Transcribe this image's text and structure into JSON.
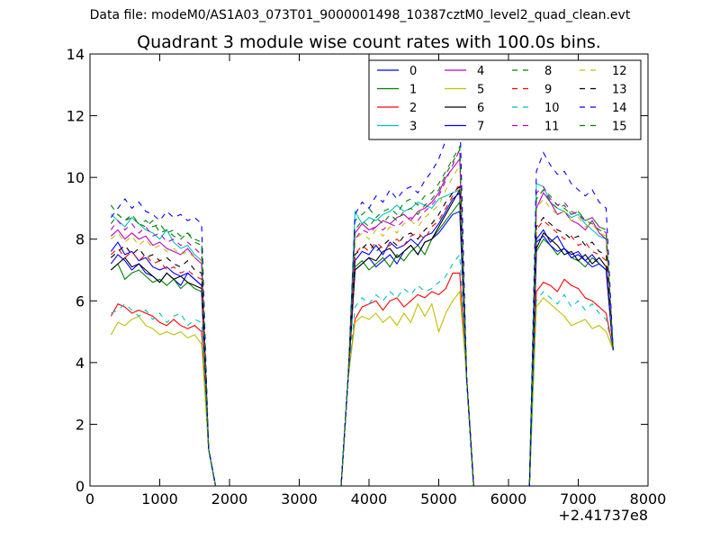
{
  "suptitle": "Data file: modeM0/AS1A03_073T01_9000001498_10387cztM0_level2_quad_clean.evt",
  "chart_data": {
    "type": "line",
    "title": "Quadrant 3 module wise count rates with 100.0s bins.",
    "xlabel": "",
    "ylabel": "",
    "x_offset_label": "+2.41737e8",
    "xlim": [
      0,
      8000
    ],
    "ylim": [
      0,
      14
    ],
    "xticks": [
      0,
      1000,
      2000,
      3000,
      4000,
      5000,
      6000,
      7000,
      8000
    ],
    "yticks": [
      0,
      2,
      4,
      6,
      8,
      10,
      12,
      14
    ],
    "grid": false,
    "legend": {
      "placement": "top-right",
      "ncol": 4
    },
    "x_segments": [
      {
        "start": 300,
        "end": 1600
      },
      {
        "start": 3800,
        "end": 5300
      },
      {
        "start": 6400,
        "end": 7400
      }
    ],
    "series": [
      {
        "name": "0",
        "color": "#0000ff",
        "dash": "solid",
        "seg_values": [
          [
            7.2,
            7.5,
            7.3,
            7.0,
            7.2,
            6.9,
            6.8,
            6.6,
            6.9,
            6.7,
            6.5,
            6.9,
            6.7,
            6.5
          ],
          [
            7.0,
            7.2,
            7.4,
            7.1,
            7.3,
            7.5,
            7.2,
            7.6,
            7.8,
            7.5,
            7.9,
            8.0,
            8.2,
            8.5,
            8.8,
            8.9
          ],
          [
            8.0,
            8.3,
            7.9,
            8.1,
            7.7,
            7.5,
            7.6,
            7.3,
            7.5,
            7.2,
            7.0
          ]
        ]
      },
      {
        "name": "1",
        "color": "#008000",
        "dash": "solid",
        "seg_values": [
          [
            7.0,
            7.2,
            6.7,
            6.9,
            7.0,
            6.8,
            6.6,
            6.7,
            6.5,
            6.7,
            6.4,
            6.6,
            6.4,
            6.3
          ],
          [
            7.1,
            7.3,
            7.0,
            7.2,
            7.4,
            7.1,
            7.5,
            7.3,
            7.6,
            7.8,
            7.5,
            8.0,
            8.3,
            8.6,
            8.9,
            9.2
          ],
          [
            7.6,
            8.0,
            7.8,
            7.5,
            7.7,
            7.4,
            7.3,
            7.1,
            7.4,
            7.2,
            7.0
          ]
        ]
      },
      {
        "name": "2",
        "color": "#ff0000",
        "dash": "solid",
        "seg_values": [
          [
            5.5,
            5.9,
            5.8,
            5.6,
            5.7,
            5.6,
            5.5,
            5.3,
            5.2,
            5.4,
            5.2,
            5.1,
            5.2,
            5.0
          ],
          [
            5.4,
            5.8,
            5.9,
            6.0,
            5.7,
            6.0,
            6.1,
            5.8,
            6.0,
            6.2,
            6.1,
            6.3,
            6.2,
            6.4,
            6.9,
            6.9
          ],
          [
            6.3,
            6.6,
            6.5,
            6.3,
            6.7,
            6.5,
            6.4,
            6.1,
            6.0,
            5.8,
            5.6
          ]
        ]
      },
      {
        "name": "3",
        "color": "#00bfbf",
        "dash": "solid",
        "seg_values": [
          [
            8.8,
            8.6,
            8.4,
            8.7,
            8.5,
            8.3,
            8.2,
            8.0,
            8.3,
            7.9,
            7.7,
            7.8,
            7.5,
            7.3
          ],
          [
            8.9,
            8.5,
            8.7,
            8.6,
            8.8,
            8.9,
            9.1,
            8.9,
            9.0,
            9.2,
            9.1,
            9.0,
            9.3,
            9.4,
            9.5,
            9.6
          ],
          [
            9.8,
            9.7,
            9.2,
            9.0,
            8.9,
            8.7,
            8.8,
            8.5,
            8.3,
            8.1,
            8.0
          ]
        ]
      },
      {
        "name": "4",
        "color": "#bf00bf",
        "dash": "solid",
        "seg_values": [
          [
            8.1,
            8.3,
            8.0,
            8.2,
            8.0,
            8.1,
            7.8,
            7.9,
            7.7,
            7.6,
            7.5,
            7.7,
            7.4,
            7.2
          ],
          [
            8.2,
            8.5,
            8.3,
            8.4,
            8.6,
            8.5,
            8.7,
            8.8,
            8.6,
            8.9,
            9.0,
            9.2,
            9.5,
            10.0,
            10.3,
            10.6
          ],
          [
            9.0,
            9.5,
            9.2,
            8.8,
            8.9,
            8.6,
            8.5,
            8.3,
            8.6,
            8.2,
            8.0
          ]
        ]
      },
      {
        "name": "5",
        "color": "#bfbf00",
        "dash": "solid",
        "seg_values": [
          [
            4.9,
            5.3,
            5.2,
            5.4,
            5.5,
            5.2,
            5.1,
            4.9,
            5.0,
            4.9,
            5.0,
            4.8,
            4.9,
            4.6
          ],
          [
            5.3,
            5.5,
            5.4,
            5.6,
            5.3,
            5.5,
            5.2,
            5.6,
            5.3,
            5.9,
            5.5,
            5.9,
            5.0,
            5.6,
            6.0,
            6.3
          ],
          [
            5.8,
            6.1,
            5.9,
            5.7,
            5.5,
            5.2,
            5.3,
            5.4,
            5.1,
            5.2,
            5.0
          ]
        ]
      },
      {
        "name": "6",
        "color": "#000000",
        "dash": "solid",
        "seg_values": [
          [
            7.0,
            7.2,
            7.4,
            7.1,
            7.2,
            7.0,
            6.8,
            6.6,
            6.9,
            6.7,
            6.8,
            6.6,
            6.5,
            6.4
          ],
          [
            7.0,
            7.2,
            7.4,
            7.3,
            7.6,
            7.7,
            7.4,
            7.6,
            7.8,
            7.5,
            7.9,
            8.0,
            8.4,
            8.8,
            9.2,
            9.6
          ],
          [
            7.7,
            8.2,
            8.0,
            7.8,
            7.5,
            7.6,
            7.3,
            7.5,
            7.2,
            7.4,
            7.1
          ]
        ]
      },
      {
        "name": "7",
        "color": "#0000ff",
        "dash": "solid",
        "seg_values": [
          [
            7.6,
            7.9,
            7.5,
            7.6,
            7.3,
            7.4,
            7.1,
            7.0,
            7.1,
            6.9,
            6.8,
            6.9,
            6.7,
            6.5
          ],
          [
            7.3,
            7.6,
            7.5,
            7.8,
            7.5,
            7.9,
            7.7,
            7.8,
            8.0,
            7.8,
            8.1,
            8.2,
            8.5,
            8.9,
            9.3,
            9.5
          ],
          [
            7.9,
            8.1,
            7.8,
            7.6,
            7.7,
            7.4,
            7.5,
            7.3,
            7.1,
            7.2,
            7.0
          ]
        ]
      },
      {
        "name": "8",
        "color": "#008000",
        "dash": "dashed",
        "seg_values": [
          [
            9.1,
            8.8,
            8.6,
            8.8,
            8.5,
            8.4,
            8.6,
            8.2,
            8.3,
            8.1,
            8.0,
            8.2,
            7.9,
            7.8
          ],
          [
            8.6,
            8.8,
            9.0,
            8.7,
            8.9,
            9.0,
            8.8,
            9.2,
            9.3,
            9.1,
            9.4,
            9.5,
            9.8,
            10.2,
            10.6,
            11.0
          ],
          [
            9.3,
            9.6,
            9.4,
            9.1,
            9.0,
            8.8,
            8.9,
            8.6,
            8.5,
            8.3,
            8.2
          ]
        ]
      },
      {
        "name": "9",
        "color": "#ff0000",
        "dash": "dashed",
        "seg_values": [
          [
            7.5,
            7.7,
            7.4,
            7.6,
            7.3,
            7.5,
            7.2,
            7.3,
            7.0,
            7.1,
            6.9,
            7.0,
            6.8,
            6.7
          ],
          [
            7.5,
            7.8,
            7.6,
            7.9,
            7.7,
            7.8,
            8.0,
            7.8,
            8.1,
            8.2,
            8.0,
            8.4,
            8.6,
            9.0,
            9.4,
            9.8
          ],
          [
            8.3,
            8.6,
            8.4,
            8.2,
            8.0,
            8.1,
            7.8,
            7.9,
            7.6,
            7.5,
            7.3
          ]
        ]
      },
      {
        "name": "10",
        "color": "#00bfbf",
        "dash": "dashed",
        "seg_values": [
          [
            5.6,
            5.7,
            5.9,
            5.7,
            5.5,
            5.7,
            5.4,
            5.6,
            5.3,
            5.5,
            5.6,
            5.2,
            5.4,
            5.3
          ],
          [
            5.8,
            6.1,
            5.9,
            6.2,
            6.0,
            6.3,
            6.1,
            6.4,
            6.2,
            6.5,
            6.3,
            6.4,
            6.6,
            6.8,
            7.2,
            7.5
          ],
          [
            6.0,
            6.3,
            6.1,
            5.9,
            6.2,
            5.8,
            6.0,
            5.7,
            5.9,
            5.6,
            5.4
          ]
        ]
      },
      {
        "name": "11",
        "color": "#bf00bf",
        "dash": "dashed",
        "seg_values": [
          [
            8.3,
            8.6,
            8.3,
            8.5,
            8.2,
            8.4,
            8.1,
            8.2,
            7.9,
            8.0,
            7.8,
            7.9,
            7.7,
            7.5
          ],
          [
            8.0,
            8.3,
            8.2,
            8.4,
            8.3,
            8.5,
            8.4,
            8.6,
            8.7,
            8.6,
            8.9,
            9.1,
            9.4,
            9.9,
            10.4,
            10.9
          ],
          [
            9.5,
            9.7,
            9.3,
            9.1,
            9.2,
            8.9,
            8.8,
            8.6,
            8.7,
            8.4,
            8.2
          ]
        ]
      },
      {
        "name": "12",
        "color": "#bfbf00",
        "dash": "dashed",
        "seg_values": [
          [
            8.0,
            8.2,
            7.9,
            8.1,
            7.8,
            8.0,
            7.7,
            7.8,
            7.6,
            7.7,
            7.5,
            7.6,
            7.4,
            7.3
          ],
          [
            8.0,
            8.2,
            8.0,
            8.3,
            8.1,
            8.4,
            8.2,
            8.5,
            8.6,
            8.4,
            8.7,
            8.9,
            9.1,
            9.6,
            10.0,
            10.4
          ],
          [
            9.0,
            9.3,
            9.0,
            8.8,
            8.9,
            8.6,
            8.7,
            8.4,
            8.5,
            8.2,
            8.1
          ]
        ]
      },
      {
        "name": "13",
        "color": "#000000",
        "dash": "dashed",
        "seg_values": [
          [
            7.4,
            7.6,
            7.8,
            7.5,
            7.7,
            7.4,
            7.5,
            7.3,
            7.4,
            7.2,
            7.1,
            7.3,
            7.0,
            6.9
          ],
          [
            7.5,
            7.7,
            7.9,
            7.6,
            7.8,
            8.0,
            7.8,
            8.1,
            8.2,
            8.0,
            8.3,
            8.5,
            8.8,
            9.2,
            9.5,
            9.7
          ],
          [
            8.4,
            8.7,
            8.5,
            8.3,
            8.2,
            8.0,
            8.1,
            7.8,
            7.9,
            7.6,
            7.5
          ]
        ]
      },
      {
        "name": "14",
        "color": "#0000ff",
        "dash": "dashed",
        "seg_values": [
          [
            8.7,
            9.0,
            9.3,
            9.0,
            9.2,
            8.9,
            8.8,
            8.6,
            8.9,
            8.7,
            8.8,
            8.6,
            8.7,
            8.5
          ],
          [
            8.8,
            9.2,
            9.0,
            9.4,
            9.2,
            9.6,
            9.3,
            9.6,
            9.7,
            9.5,
            9.9,
            10.2,
            10.6,
            11.2,
            11.8,
            12.2
          ],
          [
            10.2,
            10.8,
            10.4,
            10.1,
            10.2,
            9.8,
            9.6,
            9.4,
            9.6,
            9.2,
            9.0
          ]
        ]
      },
      {
        "name": "15",
        "color": "#008000",
        "dash": "dashed",
        "seg_values": [
          [
            8.5,
            8.8,
            8.6,
            8.7,
            8.5,
            8.6,
            8.4,
            8.5,
            8.2,
            8.3,
            8.1,
            8.2,
            8.0,
            7.9
          ],
          [
            8.3,
            8.6,
            8.4,
            8.7,
            8.5,
            8.8,
            8.6,
            8.9,
            9.0,
            8.8,
            9.1,
            9.3,
            9.6,
            10.1,
            10.5,
            10.9
          ],
          [
            9.3,
            9.6,
            9.2,
            9.0,
            9.1,
            8.8,
            8.9,
            8.6,
            8.7,
            8.4,
            8.3
          ]
        ]
      }
    ],
    "edge_values": {
      "seg1_after": [
        [
          1700,
          1.2
        ],
        [
          1800,
          0
        ]
      ],
      "seg2_before": [
        [
          3600,
          0
        ],
        [
          3700,
          3.5
        ]
      ],
      "seg2_after": [
        [
          5400,
          3.5
        ],
        [
          5500,
          0
        ]
      ],
      "seg3_before": [
        [
          6300,
          0
        ]
      ],
      "seg3_after": [
        [
          7500,
          4.4
        ]
      ],
      "zero_runs": [
        [
          1800,
          3600
        ],
        [
          5500,
          6300
        ]
      ]
    }
  }
}
